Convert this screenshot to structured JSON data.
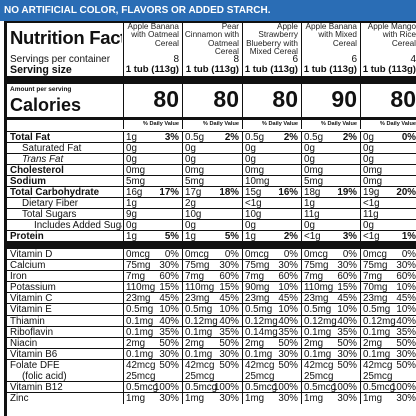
{
  "banner": "NO ARTIFICIAL COLOR, FLAVORS OR ADDED STARCH.",
  "label": {
    "title": "Nutrition Facts",
    "servings_label": "Servings per container",
    "serving_size_label": "Serving size",
    "amount_per_serving": "Amount per serving",
    "calories_label": "Calories",
    "dv_header": "% Daily Value",
    "products": [
      {
        "name": "Apple Banana with Oatmeal Cereal",
        "servings": "8",
        "serving_size": "1 tub (113g)",
        "calories": "80"
      },
      {
        "name": "Pear Cinnamon with Oatmeal Cereal",
        "servings": "8",
        "serving_size": "1 tub (113g)",
        "calories": "80"
      },
      {
        "name": "Apple Strawberry Blueberry with Mixed Cereal",
        "servings": "6",
        "serving_size": "1 tub (113g)",
        "calories": "80"
      },
      {
        "name": "Apple Banana with Mixed Cereal",
        "servings": "6",
        "serving_size": "1 tub (113g)",
        "calories": "90"
      },
      {
        "name": "Apple Mango with Rice Cereal",
        "servings": "4",
        "serving_size": "1 tub (113g)",
        "calories": "80"
      }
    ],
    "macro_rows": [
      {
        "label": "Total Fat",
        "values": [
          [
            "1g",
            "3%"
          ],
          [
            "0.5g",
            "2%"
          ],
          [
            "0.5g",
            "2%"
          ],
          [
            "0.5g",
            "2%"
          ],
          [
            "0g",
            "0%"
          ]
        ]
      },
      {
        "label": "Saturated Fat",
        "values": [
          [
            "0g",
            ""
          ],
          [
            "0g",
            ""
          ],
          [
            "0g",
            ""
          ],
          [
            "0g",
            ""
          ],
          [
            "0g",
            ""
          ]
        ]
      },
      {
        "label": "Trans Fat",
        "values": [
          [
            "0g",
            ""
          ],
          [
            "0g",
            ""
          ],
          [
            "0g",
            ""
          ],
          [
            "0g",
            ""
          ],
          [
            "0g",
            ""
          ]
        ]
      },
      {
        "label": "Cholesterol",
        "values": [
          [
            "0mg",
            ""
          ],
          [
            "0mg",
            ""
          ],
          [
            "0mg",
            ""
          ],
          [
            "0mg",
            ""
          ],
          [
            "0mg",
            ""
          ]
        ]
      },
      {
        "label": "Sodium",
        "values": [
          [
            "5mg",
            ""
          ],
          [
            "5mg",
            ""
          ],
          [
            "10mg",
            ""
          ],
          [
            "5mg",
            ""
          ],
          [
            "0mg",
            ""
          ]
        ]
      },
      {
        "label": "Total Carbohydrate",
        "values": [
          [
            "16g",
            "17%"
          ],
          [
            "17g",
            "18%"
          ],
          [
            "15g",
            "16%"
          ],
          [
            "18g",
            "19%"
          ],
          [
            "19g",
            "20%"
          ]
        ]
      },
      {
        "label": "Dietary Fiber",
        "values": [
          [
            "1g",
            ""
          ],
          [
            "2g",
            ""
          ],
          [
            "<1g",
            ""
          ],
          [
            "1g",
            ""
          ],
          [
            "<1g",
            ""
          ]
        ]
      },
      {
        "label": "Total Sugars",
        "values": [
          [
            "9g",
            ""
          ],
          [
            "10g",
            ""
          ],
          [
            "10g",
            ""
          ],
          [
            "11g",
            ""
          ],
          [
            "11g",
            ""
          ]
        ]
      },
      {
        "label": "Includes Added Sugars",
        "values": [
          [
            "0g",
            ""
          ],
          [
            "0g",
            ""
          ],
          [
            "0g",
            ""
          ],
          [
            "0g",
            ""
          ],
          [
            "0g",
            ""
          ]
        ]
      },
      {
        "label": "Protein",
        "values": [
          [
            "1g",
            "5%"
          ],
          [
            "1g",
            "5%"
          ],
          [
            "1g",
            "2%"
          ],
          [
            "<1g",
            "3%"
          ],
          [
            "<1g",
            "1%"
          ]
        ]
      }
    ],
    "micro_rows": [
      {
        "label": "Vitamin D",
        "values": [
          [
            "0mcg",
            "0%"
          ],
          [
            "0mcg",
            "0%"
          ],
          [
            "0mcg",
            "0%"
          ],
          [
            "0mcg",
            "0%"
          ],
          [
            "0mcg",
            "0%"
          ]
        ]
      },
      {
        "label": "Calcium",
        "values": [
          [
            "75mg",
            "30%"
          ],
          [
            "75mg",
            "30%"
          ],
          [
            "75mg",
            "30%"
          ],
          [
            "75mg",
            "30%"
          ],
          [
            "75mg",
            "30%"
          ]
        ]
      },
      {
        "label": "Iron",
        "values": [
          [
            "7mg",
            "60%"
          ],
          [
            "7mg",
            "60%"
          ],
          [
            "7mg",
            "60%"
          ],
          [
            "7mg",
            "60%"
          ],
          [
            "7mg",
            "60%"
          ]
        ]
      },
      {
        "label": "Potassium",
        "values": [
          [
            "110mg",
            "15%"
          ],
          [
            "110mg",
            "15%"
          ],
          [
            "90mg",
            "10%"
          ],
          [
            "110mg",
            "15%"
          ],
          [
            "70mg",
            "10%"
          ]
        ]
      },
      {
        "label": "Vitamin C",
        "values": [
          [
            "23mg",
            "45%"
          ],
          [
            "23mg",
            "45%"
          ],
          [
            "23mg",
            "45%"
          ],
          [
            "23mg",
            "45%"
          ],
          [
            "23mg",
            "45%"
          ]
        ]
      },
      {
        "label": "Vitamin E",
        "values": [
          [
            "0.5mg",
            "10%"
          ],
          [
            "0.5mg",
            "10%"
          ],
          [
            "0.5mg",
            "10%"
          ],
          [
            "0.5mg",
            "10%"
          ],
          [
            "0.5mg",
            "10%"
          ]
        ]
      },
      {
        "label": "Thiamin",
        "values": [
          [
            "0.1mg",
            "40%"
          ],
          [
            "0.12mg",
            "40%"
          ],
          [
            "0.12mg",
            "40%"
          ],
          [
            "0.12mg",
            "40%"
          ],
          [
            "0.12mg",
            "40%"
          ]
        ]
      },
      {
        "label": "Riboflavin",
        "values": [
          [
            "0.1mg",
            "35%"
          ],
          [
            "0.1mg",
            "35%"
          ],
          [
            "0.14mg",
            "35%"
          ],
          [
            "0.1mg",
            "35%"
          ],
          [
            "0.1mg",
            "35%"
          ]
        ]
      },
      {
        "label": "Niacin",
        "values": [
          [
            "2mg",
            "50%"
          ],
          [
            "2mg",
            "50%"
          ],
          [
            "2mg",
            "50%"
          ],
          [
            "2mg",
            "50%"
          ],
          [
            "2mg",
            "50%"
          ]
        ]
      },
      {
        "label": "Vitamin B6",
        "values": [
          [
            "0.1mg",
            "30%"
          ],
          [
            "0.1mg",
            "30%"
          ],
          [
            "0.1mg",
            "30%"
          ],
          [
            "0.1mg",
            "30%"
          ],
          [
            "0.1mg",
            "30%"
          ]
        ]
      },
      {
        "label": "Folate DFE",
        "label2": "(folic acid)",
        "values": [
          [
            "42mcg",
            "50%"
          ],
          [
            "42mcg",
            "50%"
          ],
          [
            "42mcg",
            "50%"
          ],
          [
            "42mcg",
            "50%"
          ],
          [
            "42mcg",
            "50%"
          ]
        ],
        "values2": [
          "25mcg",
          "25mcg",
          "25mcg",
          "25mcg",
          "25mcg"
        ]
      },
      {
        "label": "Vitamin B12",
        "values": [
          [
            "0.5mcg",
            "100%"
          ],
          [
            "0.5mcg",
            "100%"
          ],
          [
            "0.5mcg",
            "100%"
          ],
          [
            "0.5mcg",
            "100%"
          ],
          [
            "0.5mcg",
            "100%"
          ]
        ]
      },
      {
        "label": "Zinc",
        "values": [
          [
            "1mg",
            "30%"
          ],
          [
            "1mg",
            "30%"
          ],
          [
            "1mg",
            "30%"
          ],
          [
            "1mg",
            "30%"
          ],
          [
            "1mg",
            "30%"
          ]
        ]
      }
    ]
  }
}
